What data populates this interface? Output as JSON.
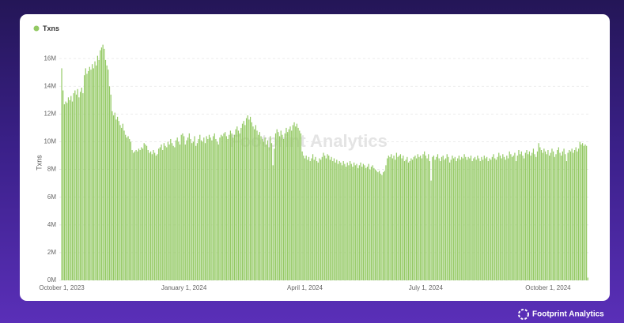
{
  "chart_data": {
    "type": "bar",
    "watermark": "Footprint Analytics",
    "brand": "Footprint Analytics",
    "ylabel": "Txns",
    "ylim": [
      0,
      17000000
    ],
    "yticks": [
      {
        "value": 0,
        "label": "0M"
      },
      {
        "value": 2000000,
        "label": "2M"
      },
      {
        "value": 4000000,
        "label": "4M"
      },
      {
        "value": 6000000,
        "label": "6M"
      },
      {
        "value": 8000000,
        "label": "8M"
      },
      {
        "value": 10000000,
        "label": "10M"
      },
      {
        "value": 12000000,
        "label": "12M"
      },
      {
        "value": 14000000,
        "label": "14M"
      },
      {
        "value": 16000000,
        "label": "16M"
      }
    ],
    "grid": true,
    "legend": "top-left",
    "categories": [
      "October 1, 2023",
      null,
      null,
      null,
      null,
      null,
      null,
      null,
      null,
      null,
      null,
      null,
      null,
      null,
      null,
      null,
      null,
      null,
      null,
      null,
      null,
      null,
      null,
      null,
      null,
      null,
      null,
      null,
      null,
      null,
      null,
      null,
      null,
      null,
      null,
      null,
      null,
      null,
      null,
      null,
      null,
      null,
      null,
      null,
      null,
      null,
      null,
      null,
      null,
      null,
      null,
      null,
      null,
      null,
      null,
      null,
      null,
      null,
      null,
      null,
      null,
      null,
      null,
      null,
      null,
      null,
      null,
      null,
      null,
      null,
      null,
      null,
      null,
      null,
      null,
      null,
      null,
      null,
      null,
      null,
      null,
      null,
      null,
      null,
      null,
      null,
      null,
      null,
      null,
      null,
      null,
      null,
      "January 1, 2024",
      null,
      null,
      null,
      null,
      null,
      null,
      null,
      null,
      null,
      null,
      null,
      null,
      null,
      null,
      null,
      null,
      null,
      null,
      null,
      null,
      null,
      null,
      null,
      null,
      null,
      null,
      null,
      null,
      null,
      null,
      null,
      null,
      null,
      null,
      null,
      null,
      null,
      null,
      null,
      null,
      null,
      null,
      null,
      null,
      null,
      null,
      null,
      null,
      null,
      null,
      null,
      null,
      null,
      null,
      null,
      null,
      null,
      null,
      null,
      null,
      null,
      null,
      null,
      null,
      null,
      null,
      null,
      null,
      null,
      null,
      null,
      null,
      null,
      null,
      null,
      null,
      null,
      null,
      null,
      null,
      null,
      null,
      null,
      null,
      null,
      null,
      null,
      null,
      null,
      null,
      "April 1, 2024",
      null,
      null,
      null,
      null,
      null,
      null,
      null,
      null,
      null,
      null,
      null,
      null,
      null,
      null,
      null,
      null,
      null,
      null,
      null,
      null,
      null,
      null,
      null,
      null,
      null,
      null,
      null,
      null,
      null,
      null,
      null,
      null,
      null,
      null,
      null,
      null,
      null,
      null,
      null,
      null,
      null,
      null,
      null,
      null,
      null,
      null,
      null,
      null,
      null,
      null,
      null,
      null,
      null,
      null,
      null,
      null,
      null,
      null,
      null,
      null,
      null,
      null,
      null,
      null,
      null,
      null,
      null,
      null,
      null,
      null,
      null,
      null,
      null,
      null,
      null,
      null,
      null,
      null,
      null,
      null,
      null,
      null,
      null,
      null,
      null,
      null,
      null,
      null,
      null,
      null,
      "July 1, 2024",
      null,
      null,
      null,
      null,
      null,
      null,
      null,
      null,
      null,
      null,
      null,
      null,
      null,
      null,
      null,
      null,
      null,
      null,
      null,
      null,
      null,
      null,
      null,
      null,
      null,
      null,
      null,
      null,
      null,
      null,
      null,
      null,
      null,
      null,
      null,
      null,
      null,
      null,
      null,
      null,
      null,
      null,
      null,
      null,
      null,
      null,
      null,
      null,
      null,
      null,
      null,
      null,
      null,
      null,
      null,
      null,
      null,
      null,
      null,
      null,
      null,
      null,
      null,
      null,
      null,
      null,
      null,
      null,
      null,
      null,
      null,
      null,
      null,
      null,
      null,
      null,
      null,
      null,
      null,
      null,
      null,
      null,
      null,
      null,
      null,
      null,
      null,
      null,
      null,
      null,
      null,
      "October 1, 2024",
      null,
      null,
      null,
      null,
      null,
      null,
      null,
      null,
      null,
      null,
      null,
      null,
      null,
      null,
      null,
      null,
      null,
      null,
      null,
      null,
      null,
      null,
      null,
      null,
      null,
      null,
      null,
      null,
      null,
      null
    ],
    "series": [
      {
        "name": "Txns",
        "color": "#93c963",
        "values": [
          15300000,
          13700000,
          12700000,
          12900000,
          12800000,
          13200000,
          13000000,
          13300000,
          12900000,
          13500000,
          13700000,
          13400000,
          13800000,
          13200000,
          13600000,
          13900000,
          13500000,
          14800000,
          15300000,
          14900000,
          15100000,
          15400000,
          15200000,
          15600000,
          15300000,
          15800000,
          15500000,
          16200000,
          15900000,
          16600000,
          16800000,
          17000000,
          16700000,
          15900000,
          15500000,
          15200000,
          14000000,
          13400000,
          12200000,
          11900000,
          12100000,
          11600000,
          11800000,
          11500000,
          11200000,
          11000000,
          11300000,
          10800000,
          10500000,
          10300000,
          10400000,
          10200000,
          10000000,
          9400000,
          9200000,
          9300000,
          9400000,
          9300000,
          9500000,
          9400000,
          9600000,
          9500000,
          9900000,
          9800000,
          9700000,
          9400000,
          9200000,
          9300000,
          9100000,
          9400000,
          9200000,
          9000000,
          9100000,
          9500000,
          9600000,
          9800000,
          9400000,
          9900000,
          9700000,
          9600000,
          10000000,
          9800000,
          10200000,
          9900000,
          9700000,
          9600000,
          10100000,
          10300000,
          10000000,
          9800000,
          10500000,
          10600000,
          10400000,
          9800000,
          10100000,
          10300000,
          10600000,
          10200000,
          9900000,
          10000000,
          10400000,
          9700000,
          9900000,
          10200000,
          10500000,
          10100000,
          10000000,
          10300000,
          9900000,
          10400000,
          10200000,
          10500000,
          10300000,
          10100000,
          10400000,
          10600000,
          10200000,
          10000000,
          9800000,
          10300000,
          10500000,
          10400000,
          10600000,
          10700000,
          10400000,
          10200000,
          10500000,
          10800000,
          10600000,
          10300000,
          10500000,
          10900000,
          11100000,
          10800000,
          10600000,
          11000000,
          11300000,
          11500000,
          11200000,
          11700000,
          11900000,
          11600000,
          11800000,
          11400000,
          11100000,
          10900000,
          11200000,
          10800000,
          10500000,
          10700000,
          10400000,
          10200000,
          10000000,
          10300000,
          9800000,
          10100000,
          9600000,
          10400000,
          9900000,
          8300000,
          9500000,
          10600000,
          10900000,
          10700000,
          10400000,
          10800000,
          10500000,
          10200000,
          10600000,
          11000000,
          10700000,
          10900000,
          11100000,
          10800000,
          11200000,
          11400000,
          11100000,
          11300000,
          11000000,
          10800000,
          10600000,
          9300000,
          9000000,
          8800000,
          9000000,
          8700000,
          8900000,
          8600000,
          8800000,
          9100000,
          8700000,
          8900000,
          8600000,
          8500000,
          8800000,
          8700000,
          8900000,
          9200000,
          9000000,
          8800000,
          9100000,
          9000000,
          8700000,
          8900000,
          8600000,
          8800000,
          8500000,
          8700000,
          8400000,
          8600000,
          8500000,
          8300000,
          8600000,
          8400000,
          8200000,
          8500000,
          8300000,
          8600000,
          8400000,
          8200000,
          8500000,
          8300000,
          8400000,
          8100000,
          8300000,
          8500000,
          8200000,
          8400000,
          8300000,
          8100000,
          8200000,
          8400000,
          8000000,
          8200000,
          8300000,
          8100000,
          8000000,
          7900000,
          7800000,
          7900000,
          7700000,
          7600000,
          7800000,
          7900000,
          8300000,
          8800000,
          9000000,
          8900000,
          9100000,
          8800000,
          9000000,
          8700000,
          9200000,
          8900000,
          9000000,
          9100000,
          8800000,
          9000000,
          8600000,
          8700000,
          8900000,
          8500000,
          8600000,
          8800000,
          8700000,
          8900000,
          9000000,
          8800000,
          9100000,
          8900000,
          9000000,
          8800000,
          9100000,
          9300000,
          9000000,
          8800000,
          9100000,
          8600000,
          7200000,
          8900000,
          9000000,
          8700000,
          8900000,
          9100000,
          8800000,
          8600000,
          8900000,
          9000000,
          8700000,
          8800000,
          9100000,
          8900000,
          8500000,
          8700000,
          9000000,
          8800000,
          8900000,
          8600000,
          8800000,
          9000000,
          8700000,
          8900000,
          8800000,
          9100000,
          8900000,
          8700000,
          8900000,
          8800000,
          9000000,
          8600000,
          8800000,
          8900000,
          8700000,
          9000000,
          8800000,
          8600000,
          8900000,
          8700000,
          9000000,
          8800000,
          8900000,
          8600000,
          8800000,
          8700000,
          8900000,
          9100000,
          8800000,
          8700000,
          8900000,
          9200000,
          9000000,
          8800000,
          9100000,
          8900000,
          8700000,
          9000000,
          8800000,
          9300000,
          9100000,
          8900000,
          9000000,
          9200000,
          8600000,
          9000000,
          9400000,
          9100000,
          9300000,
          9000000,
          8800000,
          9200000,
          9400000,
          9100000,
          9300000,
          9000000,
          9200000,
          9500000,
          9100000,
          8900000,
          9300000,
          9900000,
          9600000,
          9400000,
          9200000,
          9500000,
          9300000,
          9100000,
          9400000,
          9000000,
          9200000,
          9500000,
          9300000,
          8900000,
          9100000,
          9400000,
          9600000,
          9200000,
          9000000,
          9300000,
          9500000,
          9100000,
          8600000,
          9200000,
          9400000,
          9300000,
          9500000,
          9200000,
          9400000,
          9600000,
          9300000,
          9500000,
          10000000,
          9800000,
          9900000,
          9700000,
          9800000,
          9700000,
          200000
        ]
      }
    ]
  }
}
